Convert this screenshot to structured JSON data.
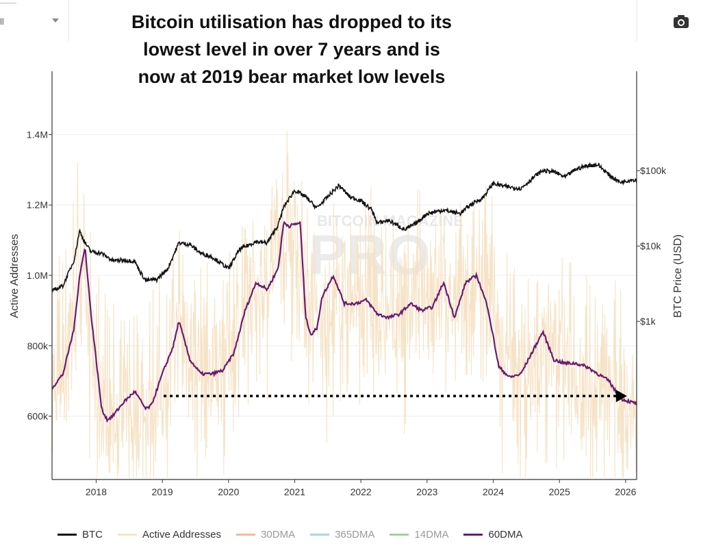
{
  "header": {
    "select_value": "ll",
    "title_lines": [
      "Bitcoin utilisation has dropped to its",
      "lowest level in over 7 years and is",
      "now at 2019 bear market low levels"
    ]
  },
  "watermark": {
    "line1": "BITCOIN MAGAZINE",
    "line2": "PRO"
  },
  "legend": [
    {
      "label": "BTC",
      "color": "#111111",
      "muted": false
    },
    {
      "label": "Active Addresses",
      "color": "#f5e2c4",
      "muted": false
    },
    {
      "label": "30DMA",
      "color": "#f2b8a4",
      "muted": true
    },
    {
      "label": "365DMA",
      "color": "#a9d3ee",
      "muted": true
    },
    {
      "label": "14DMA",
      "color": "#a6cf9e",
      "muted": true
    },
    {
      "label": "60DMA",
      "color": "#6a1b6e",
      "muted": false
    }
  ],
  "chart_data": {
    "type": "line",
    "xlabel": "",
    "x_ticks": [
      "2018",
      "2019",
      "2020",
      "2021",
      "2022",
      "2023",
      "2024",
      "2025",
      "2026"
    ],
    "xlim": [
      "2017-07",
      "2026-05"
    ],
    "left_axis": {
      "label": "Active Addresses",
      "ticks": [
        "600k",
        "800k",
        "1.0M",
        "1.2M",
        "1.4M"
      ],
      "tick_values": [
        600000,
        800000,
        1000000,
        1200000,
        1400000
      ],
      "ylim": [
        420000,
        1580000
      ]
    },
    "right_axis": {
      "label": "BTC Price (USD)",
      "scale": "log",
      "ticks": [
        "$1k",
        "$10k",
        "$100k"
      ],
      "tick_values": [
        1000,
        10000,
        100000
      ]
    },
    "grid": true,
    "legend_position": "bottom",
    "colors": {
      "btc": "#111111",
      "active": "#f5e2c4",
      "dma60": "#6a1b6e"
    },
    "annotation": {
      "type": "dotted-arrow",
      "from": [
        "2019-02",
        630000
      ],
      "to": [
        "2026-02",
        630000
      ]
    },
    "series": [
      {
        "name": "BTC",
        "axis": "right",
        "x": [
          "2017-07",
          "2017-09",
          "2017-11",
          "2017-12",
          "2018-01",
          "2018-02",
          "2018-04",
          "2018-06",
          "2018-08",
          "2018-10",
          "2018-11",
          "2018-12",
          "2019-02",
          "2019-04",
          "2019-05",
          "2019-06",
          "2019-08",
          "2019-10",
          "2019-12",
          "2020-03",
          "2020-05",
          "2020-08",
          "2020-10",
          "2020-12",
          "2021-01",
          "2021-03",
          "2021-05",
          "2021-07",
          "2021-09",
          "2021-11",
          "2022-01",
          "2022-03",
          "2022-05",
          "2022-06",
          "2022-08",
          "2022-11",
          "2023-01",
          "2023-03",
          "2023-06",
          "2023-09",
          "2023-11",
          "2024-01",
          "2024-03",
          "2024-05",
          "2024-08",
          "2024-11",
          "2024-12",
          "2025-02",
          "2025-04",
          "2025-06",
          "2025-08",
          "2025-10",
          "2025-12",
          "2026-02",
          "2026-04",
          "2026-05"
        ],
        "values": [
          2500,
          3000,
          6500,
          16000,
          11000,
          8500,
          8000,
          6400,
          6500,
          6300,
          4500,
          3500,
          3600,
          5000,
          7500,
          11000,
          10500,
          8000,
          7200,
          5000,
          9000,
          11500,
          11000,
          19000,
          33000,
          55000,
          45000,
          32000,
          45000,
          64000,
          45000,
          40000,
          30000,
          20000,
          22000,
          16500,
          20000,
          27000,
          30000,
          27000,
          36000,
          43000,
          68000,
          62000,
          58000,
          90000,
          100000,
          97000,
          82000,
          105000,
          117000,
          120000,
          88000,
          70000,
          76000,
          75000
        ]
      },
      {
        "name": "Active Addresses",
        "axis": "left",
        "x": [
          "2017-07",
          "2017-10",
          "2017-12",
          "2018-03",
          "2018-06",
          "2018-09",
          "2018-12",
          "2019-03",
          "2019-06",
          "2019-09",
          "2019-12",
          "2020-03",
          "2020-06",
          "2020-09",
          "2020-12",
          "2021-03",
          "2021-06",
          "2021-09",
          "2021-12",
          "2022-03",
          "2022-06",
          "2022-09",
          "2022-12",
          "2023-03",
          "2023-06",
          "2023-09",
          "2023-12",
          "2024-03",
          "2024-06",
          "2024-09",
          "2024-12",
          "2025-03",
          "2025-06",
          "2025-09",
          "2025-12",
          "2026-03",
          "2026-05"
        ],
        "values": [
          650000,
          820000,
          1050000,
          700000,
          580000,
          600000,
          620000,
          680000,
          860000,
          760000,
          720000,
          800000,
          900000,
          960000,
          1080000,
          1120000,
          900000,
          820000,
          960000,
          920000,
          900000,
          880000,
          920000,
          940000,
          960000,
          900000,
          960000,
          900000,
          720000,
          700000,
          760000,
          800000,
          720000,
          710000,
          680000,
          640000,
          620000
        ]
      },
      {
        "name": "60DMA",
        "axis": "left",
        "x": [
          "2017-07",
          "2017-09",
          "2017-11",
          "2017-12",
          "2018-01",
          "2018-02",
          "2018-04",
          "2018-05",
          "2018-06",
          "2018-08",
          "2018-10",
          "2018-12",
          "2019-01",
          "2019-03",
          "2019-05",
          "2019-06",
          "2019-08",
          "2019-10",
          "2019-12",
          "2020-02",
          "2020-04",
          "2020-06",
          "2020-08",
          "2020-10",
          "2020-12",
          "2021-01",
          "2021-02",
          "2021-04",
          "2021-05",
          "2021-06",
          "2021-07",
          "2021-08",
          "2021-10",
          "2021-12",
          "2022-02",
          "2022-04",
          "2022-06",
          "2022-08",
          "2022-10",
          "2022-12",
          "2023-02",
          "2023-04",
          "2023-06",
          "2023-08",
          "2023-10",
          "2023-12",
          "2024-02",
          "2024-04",
          "2024-06",
          "2024-08",
          "2024-10",
          "2024-12",
          "2025-02",
          "2025-04",
          "2025-06",
          "2025-08",
          "2025-10",
          "2025-12",
          "2026-02",
          "2026-05"
        ],
        "values": [
          680000,
          720000,
          850000,
          1000000,
          1080000,
          900000,
          620000,
          590000,
          600000,
          640000,
          670000,
          620000,
          630000,
          720000,
          800000,
          870000,
          760000,
          720000,
          720000,
          730000,
          780000,
          900000,
          980000,
          960000,
          1020000,
          1150000,
          1140000,
          1150000,
          880000,
          830000,
          850000,
          940000,
          1000000,
          920000,
          920000,
          930000,
          890000,
          880000,
          890000,
          920000,
          900000,
          910000,
          980000,
          880000,
          980000,
          1000000,
          910000,
          740000,
          710000,
          720000,
          780000,
          840000,
          760000,
          750000,
          750000,
          740000,
          720000,
          700000,
          650000,
          635000
        ]
      }
    ]
  }
}
